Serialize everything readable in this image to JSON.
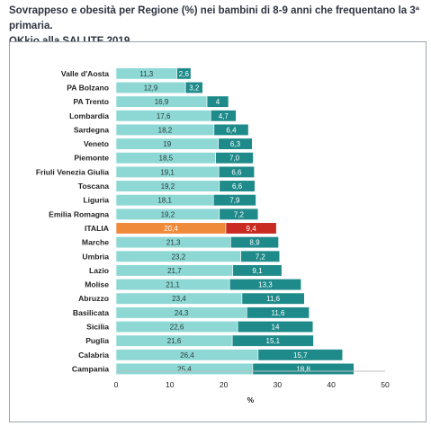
{
  "title_line1": "Sovrappeso e obesità per Regione (%) nei bambini di 8-9 anni che frequentano la 3ª primaria.",
  "title_line2": "OKkio alla SALUTE 2019",
  "chart_data": {
    "type": "bar",
    "orientation": "horizontal",
    "stacked": true,
    "xlabel": "%",
    "xlim": [
      0,
      50
    ],
    "xticks": [
      0,
      10,
      20,
      30,
      40,
      50
    ],
    "grid": false,
    "legend": "none",
    "colors": {
      "series1": "#8dd8d4",
      "series2": "#1e8a8a",
      "highlight1": "#ef8a3b",
      "highlight2": "#c92a22"
    },
    "highlight_category": "ITALIA",
    "categories": [
      "Valle d'Aosta",
      "PA Bolzano",
      "PA Trento",
      "Lombardia",
      "Sardegna",
      "Veneto",
      "Piemonte",
      "Friuli Venezia Giulia",
      "Toscana",
      "Liguria",
      "Emilia Romagna",
      "ITALIA",
      "Marche",
      "Umbria",
      "Lazio",
      "Molise",
      "Abruzzo",
      "Basilicata",
      "Sicilia",
      "Puglia",
      "Calabria",
      "Campania"
    ],
    "series": [
      {
        "values": [
          11.3,
          12.9,
          16.9,
          17.6,
          18.2,
          19,
          18.5,
          19.1,
          19.2,
          18.1,
          19.2,
          20.4,
          21.3,
          23.2,
          21.7,
          21.1,
          23.4,
          24.3,
          22.6,
          21.6,
          26.4,
          25.4
        ],
        "labels": [
          "11,3",
          "12,9",
          "16,9",
          "17,6",
          "18,2",
          "19",
          "18,5",
          "19,1",
          "19,2",
          "18,1",
          "19,2",
          "20,4",
          "21,3",
          "23,2",
          "21,7",
          "21,1",
          "23,4",
          "24,3",
          "22,6",
          "21,6",
          "26,4",
          "25,4"
        ]
      },
      {
        "values": [
          2.6,
          3.2,
          4,
          4.7,
          6.4,
          6.3,
          7.0,
          6.6,
          6.6,
          7.9,
          7.2,
          9.4,
          8.9,
          7.2,
          9.1,
          13.3,
          11.6,
          11.6,
          14,
          15.1,
          15.7,
          18.8
        ],
        "labels": [
          "2,6",
          "3,2",
          "4",
          "4,7",
          "6,4",
          "6,3",
          "7,0",
          "6,6",
          "6,6",
          "7,9",
          "7,2",
          "9,4",
          "8,9",
          "7,2",
          "9,1",
          "13,3",
          "11,6",
          "11,6",
          "14",
          "15,1",
          "15,7",
          "18,8"
        ]
      }
    ]
  }
}
